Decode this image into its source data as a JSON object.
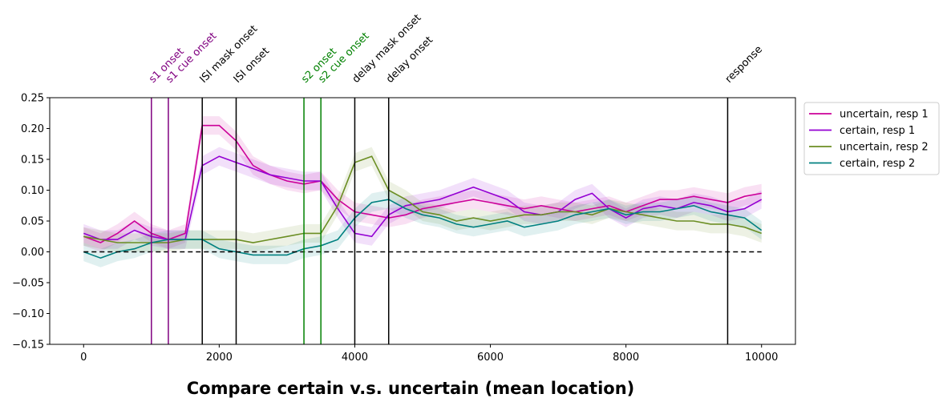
{
  "chart_data": {
    "type": "line",
    "title": "Compare certain v.s. uncertain (mean location)",
    "xlabel": "",
    "ylabel": "",
    "xlim": [
      -500,
      10500
    ],
    "ylim": [
      -0.15,
      0.25
    ],
    "xticks": [
      0,
      2000,
      4000,
      6000,
      8000,
      10000
    ],
    "xtick_labels": [
      "0",
      "2000",
      "4000",
      "6000",
      "8000",
      "10000"
    ],
    "yticks": [
      -0.15,
      -0.1,
      -0.05,
      0.0,
      0.05,
      0.1,
      0.15,
      0.2,
      0.25
    ],
    "ytick_labels": [
      "−0.15",
      "−0.10",
      "−0.05",
      "0.00",
      "0.05",
      "0.10",
      "0.15",
      "0.20",
      "0.25"
    ],
    "grid": false,
    "legend_position": "outside-right",
    "baseline": {
      "y": 0.0,
      "x_range": [
        0,
        10000
      ],
      "style": "dashed",
      "color": "#000000"
    },
    "events": [
      {
        "x": 1000,
        "label": "s1 onset",
        "color": "#800080"
      },
      {
        "x": 1250,
        "label": "s1 cue onset",
        "color": "#800080"
      },
      {
        "x": 1750,
        "label": "ISI mask onset",
        "color": "#000000"
      },
      {
        "x": 2250,
        "label": "ISI onset",
        "color": "#000000"
      },
      {
        "x": 3250,
        "label": "s2 onset",
        "color": "#008000"
      },
      {
        "x": 3500,
        "label": "s2 cue onset",
        "color": "#008000"
      },
      {
        "x": 4000,
        "label": "delay mask onset",
        "color": "#000000"
      },
      {
        "x": 4500,
        "label": "delay onset",
        "color": "#000000"
      },
      {
        "x": 9500,
        "label": "response",
        "color": "#000000"
      }
    ],
    "x": [
      0,
      250,
      500,
      750,
      1000,
      1250,
      1500,
      1750,
      2000,
      2250,
      2500,
      2750,
      3000,
      3250,
      3500,
      3750,
      4000,
      4250,
      4500,
      4750,
      5000,
      5250,
      5500,
      5750,
      6000,
      6250,
      6500,
      6750,
      7000,
      7250,
      7500,
      7750,
      8000,
      8250,
      8500,
      8750,
      9000,
      9250,
      9500,
      9750,
      10000
    ],
    "series": [
      {
        "name": "uncertain, resp 1",
        "color": "#cc0099",
        "band": 0.015,
        "values": [
          0.025,
          0.015,
          0.03,
          0.05,
          0.03,
          0.02,
          0.03,
          0.205,
          0.205,
          0.18,
          0.14,
          0.125,
          0.115,
          0.11,
          0.115,
          0.085,
          0.065,
          0.06,
          0.055,
          0.06,
          0.07,
          0.075,
          0.08,
          0.085,
          0.08,
          0.075,
          0.07,
          0.075,
          0.07,
          0.065,
          0.07,
          0.075,
          0.065,
          0.075,
          0.085,
          0.085,
          0.09,
          0.085,
          0.08,
          0.09,
          0.095
        ]
      },
      {
        "name": "certain, resp 1",
        "color": "#9400d3",
        "band": 0.015,
        "values": [
          0.03,
          0.02,
          0.02,
          0.035,
          0.025,
          0.02,
          0.02,
          0.14,
          0.155,
          0.145,
          0.135,
          0.125,
          0.12,
          0.115,
          0.115,
          0.07,
          0.03,
          0.025,
          0.06,
          0.075,
          0.08,
          0.085,
          0.095,
          0.105,
          0.095,
          0.085,
          0.065,
          0.06,
          0.065,
          0.085,
          0.095,
          0.07,
          0.055,
          0.07,
          0.075,
          0.07,
          0.08,
          0.075,
          0.065,
          0.07,
          0.085
        ]
      },
      {
        "name": "uncertain, resp 2",
        "color": "#6b8e23",
        "band": 0.015,
        "values": [
          0.025,
          0.02,
          0.015,
          0.015,
          0.015,
          0.015,
          0.02,
          0.02,
          0.02,
          0.02,
          0.015,
          0.02,
          0.025,
          0.03,
          0.03,
          0.075,
          0.145,
          0.155,
          0.1,
          0.085,
          0.065,
          0.06,
          0.05,
          0.055,
          0.05,
          0.055,
          0.06,
          0.06,
          0.065,
          0.065,
          0.06,
          0.07,
          0.065,
          0.06,
          0.055,
          0.05,
          0.05,
          0.045,
          0.045,
          0.04,
          0.03
        ]
      },
      {
        "name": "certain, resp 2",
        "color": "#008080",
        "band": 0.015,
        "values": [
          0.0,
          -0.01,
          0.0,
          0.005,
          0.015,
          0.02,
          0.02,
          0.02,
          0.005,
          0.0,
          -0.005,
          -0.005,
          -0.005,
          0.005,
          0.01,
          0.02,
          0.055,
          0.08,
          0.085,
          0.07,
          0.06,
          0.055,
          0.045,
          0.04,
          0.045,
          0.05,
          0.04,
          0.045,
          0.05,
          0.06,
          0.065,
          0.07,
          0.06,
          0.065,
          0.065,
          0.07,
          0.075,
          0.065,
          0.06,
          0.055,
          0.035
        ]
      }
    ]
  }
}
